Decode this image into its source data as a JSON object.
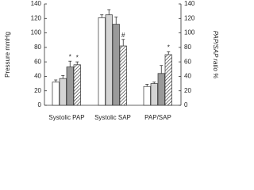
{
  "chart_data": {
    "type": "bar",
    "y_label": "Pressure mmHg",
    "y2_label": "PAP/SAP ratio %",
    "categories": [
      "Systolic PAP",
      "Systolic SAP",
      "PAP/SAP"
    ],
    "series": [
      {
        "color": "#ffffff",
        "values": [
          32,
          121,
          26
        ],
        "errors": [
          3,
          4,
          3
        ],
        "markers": [
          null,
          null,
          null
        ]
      },
      {
        "color": "#d4d4d4",
        "values": [
          37,
          125,
          30
        ],
        "errors": [
          4,
          7,
          2
        ],
        "markers": [
          null,
          null,
          null
        ]
      },
      {
        "color": "#9a9a9a",
        "values": [
          53,
          112,
          44
        ],
        "errors": [
          8,
          10,
          11
        ],
        "markers": [
          "*",
          null,
          null
        ]
      },
      {
        "color": "#ffffff",
        "hatch": true,
        "values": [
          56,
          82,
          70
        ],
        "errors": [
          4,
          9,
          4
        ],
        "markers": [
          "*",
          "#",
          "*"
        ]
      }
    ],
    "ylim": [
      0,
      140
    ],
    "yticks": [
      0,
      20,
      40,
      60,
      80,
      100,
      120,
      140
    ],
    "y2lim": [
      0,
      140
    ],
    "y2ticks": [
      0,
      20,
      40,
      60,
      80,
      100,
      120,
      140
    ]
  }
}
